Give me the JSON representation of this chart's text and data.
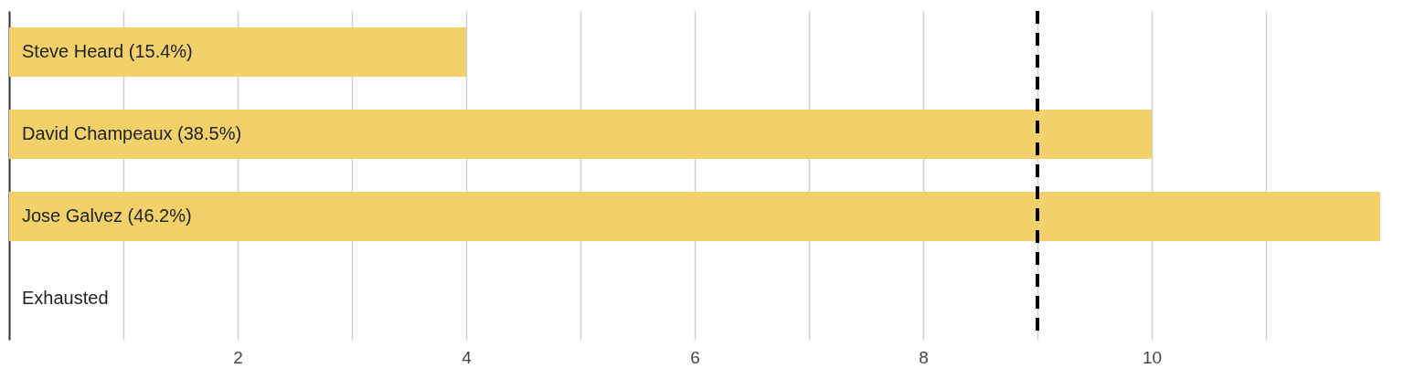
{
  "chart_data": {
    "type": "bar",
    "orientation": "horizontal",
    "categories": [
      "Steve Heard (15.4%)",
      "David Champeaux (38.5%)",
      "Jose Galvez (46.2%)",
      "Exhausted"
    ],
    "values": [
      4,
      10,
      12,
      0
    ],
    "color": "#f2d16b",
    "xlim": [
      0,
      12
    ],
    "xticks": [
      {
        "value": 1,
        "label": null
      },
      2,
      {
        "value": 3,
        "label": null
      },
      4,
      {
        "value": 5,
        "label": null
      },
      6,
      {
        "value": 7,
        "label": null
      },
      8,
      {
        "value": 9,
        "label": null
      },
      10,
      {
        "value": 11,
        "label": null
      }
    ],
    "grid": "x",
    "ref_lines": [
      {
        "axis": "x",
        "value": 9,
        "color": "#000000",
        "line_style": "dashed"
      }
    ]
  }
}
